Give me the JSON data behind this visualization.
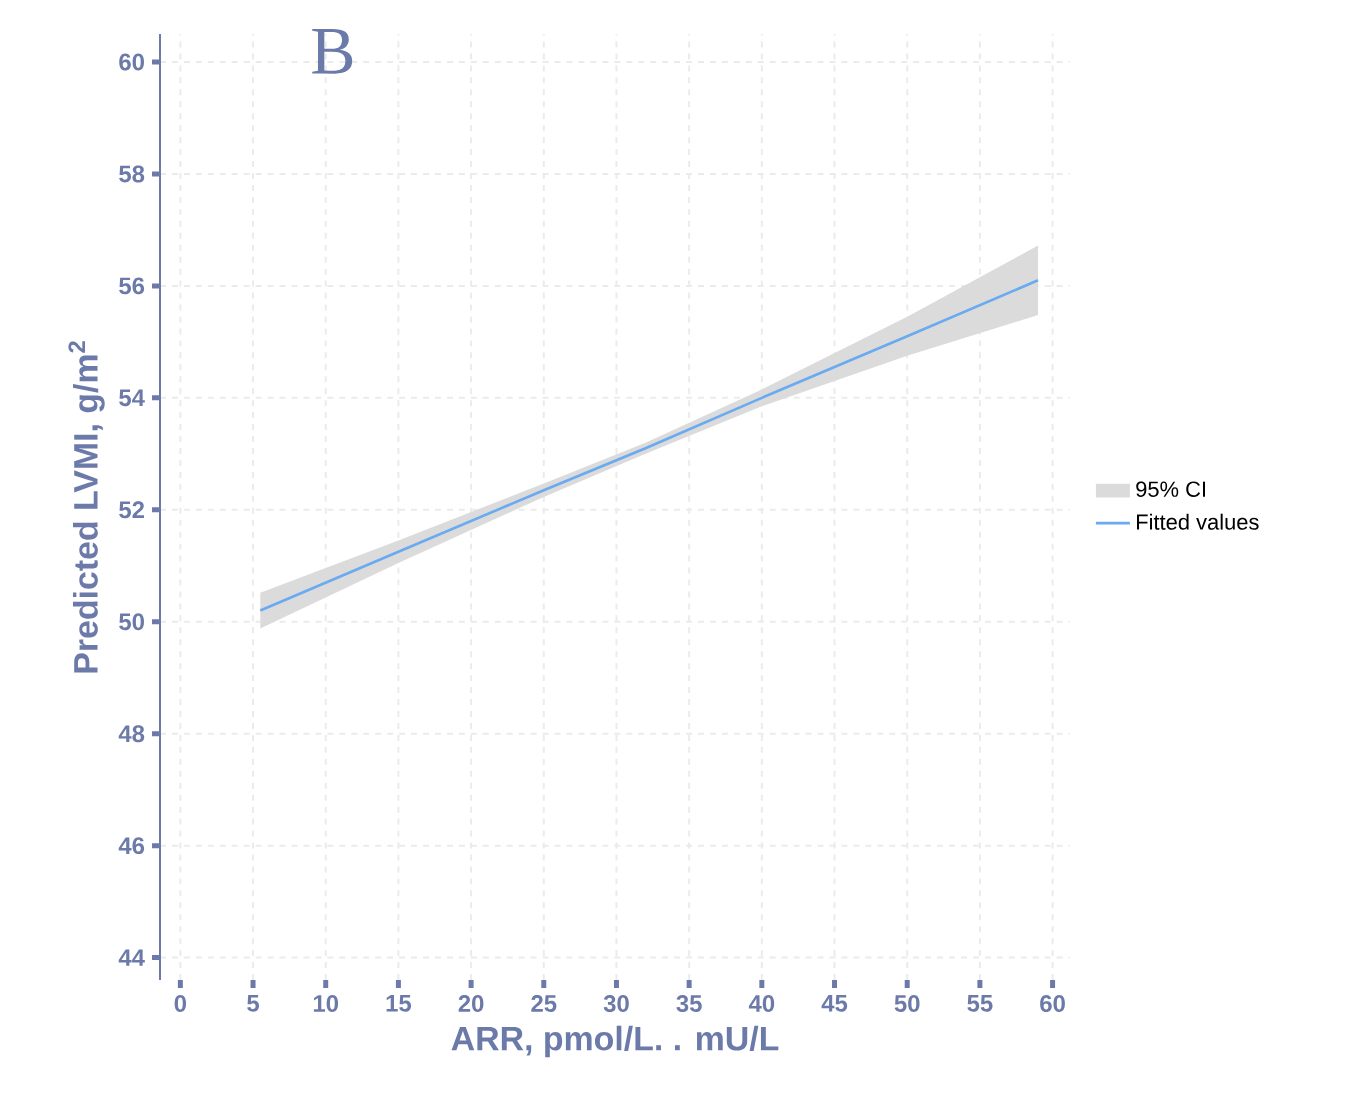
{
  "chart_data": {
    "type": "line",
    "title": "B",
    "xlabel": "ARR, pmol/L. .  mU/L",
    "ylabel": "Predicted LVMI, g/m$^{2}$",
    "x": [
      5.5,
      15,
      25,
      32,
      40,
      50,
      59
    ],
    "series": [
      {
        "name": "Fitted values",
        "color": "#6aaaf0",
        "values": [
          50.2,
          51.25,
          52.35,
          53.1,
          54.0,
          55.1,
          56.1
        ],
        "lower": [
          49.88,
          51.05,
          52.23,
          53.0,
          53.85,
          54.75,
          55.48
        ],
        "upper": [
          50.52,
          51.45,
          52.47,
          53.2,
          54.15,
          55.45,
          56.72
        ]
      }
    ],
    "annotations": [
      "95% CI"
    ],
    "xlim": [
      -1.4,
      61.2
    ],
    "ylim": [
      43.6,
      60.5
    ],
    "xticks": [
      0,
      5,
      10,
      15,
      20,
      25,
      30,
      35,
      40,
      45,
      50,
      55,
      60
    ],
    "yticks": [
      44,
      46,
      48,
      50,
      52,
      54,
      56,
      58,
      60
    ],
    "grid": true,
    "legend": "right",
    "marker": "none",
    "line_style": "solid"
  }
}
